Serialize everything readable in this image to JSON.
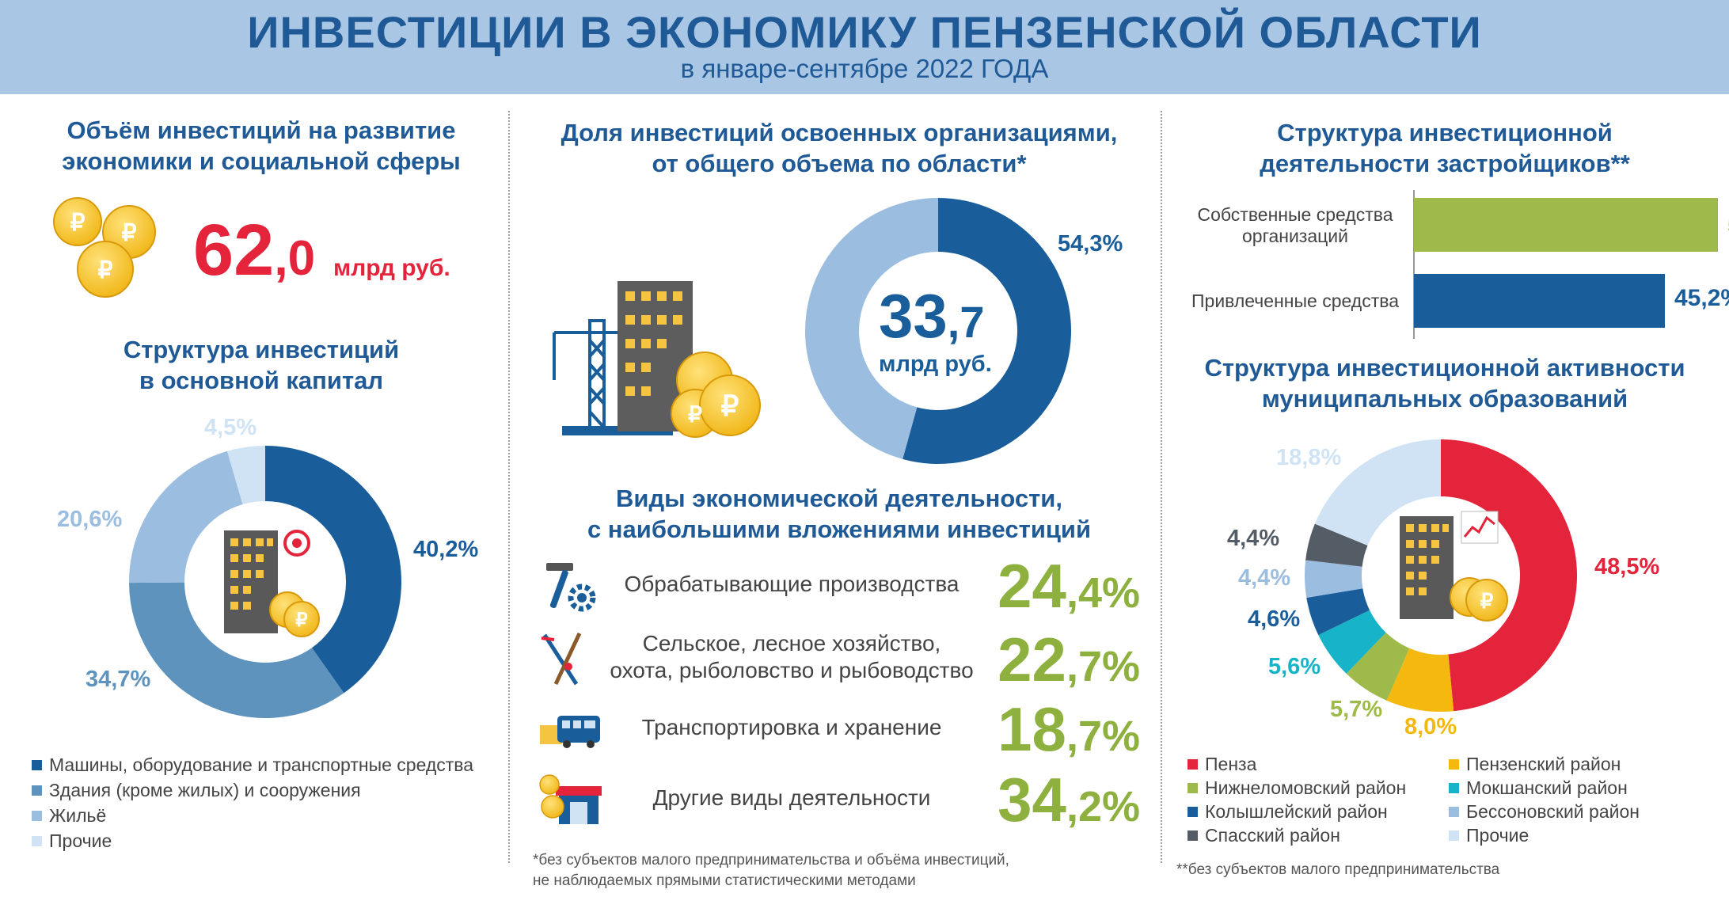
{
  "header": {
    "title": "ИНВЕСТИЦИИ В ЭКОНОМИКУ ПЕНЗЕНСКОЙ ОБЛАСТИ",
    "subtitle": "в январе-сентябре 2022 ГОДА"
  },
  "volume": {
    "title_line1": "Объём инвестиций на развитие",
    "title_line2": "экономики и социальной сферы",
    "value_int": "62",
    "value_dec": ",0",
    "unit": "млрд руб."
  },
  "share": {
    "title_line1": "Доля инвестиций освоенных организациями,",
    "title_line2": "от общего объема по области*",
    "center_int": "33",
    "center_dec": ",7",
    "center_unit": "млрд руб.",
    "percent_label": "54,3%"
  },
  "developers": {
    "title_line1": "Структура  инвестиционной",
    "title_line2": "деятельности  застройщиков**"
  },
  "fixed_capital": {
    "title_line1": "Структура  инвестиций",
    "title_line2": "в основной капитал",
    "labels": [
      "40,2%",
      "34,7%",
      "20,6%",
      "4,5%"
    ],
    "legend": [
      "Машины, оборудование и транспортные средства",
      "Здания (кроме жилых) и сооружения",
      "Жильё",
      "Прочие"
    ]
  },
  "activities": {
    "title_line1": "Виды экономической деятельности,",
    "title_line2": "с наибольшими вложениями инвестиций",
    "items": [
      {
        "name_line1": "Обрабатывающие  производства",
        "name_line2": "",
        "int": "24",
        "dec": ",4%",
        "icon": "hammer-gear-icon"
      },
      {
        "name_line1": "Сельское, лесное хозяйство,",
        "name_line2": "охота, рыболовство и рыбоводство",
        "int": "22",
        "dec": ",7%",
        "icon": "rods-icon"
      },
      {
        "name_line1": "Транспортировка и хранение",
        "name_line2": "",
        "int": "18",
        "dec": ",7%",
        "icon": "truck-bus-icon"
      },
      {
        "name_line1": "Другие виды деятельности",
        "name_line2": "",
        "int": "34",
        "dec": ",2%",
        "icon": "shop-coins-icon"
      }
    ]
  },
  "municipal": {
    "title_line1": "Структура  инвестиционной активности",
    "title_line2": "муниципальных образований",
    "labels": [
      "48,5%",
      "8,0%",
      "5,7%",
      "5,6%",
      "4,6%",
      "4,4%",
      "4,4%",
      "18,8%"
    ],
    "legend": [
      "Пенза",
      "Пензенский район",
      "Нижнеломовский район",
      "Мокшанский район",
      "Колышлейский район",
      "Бессоновский район",
      "Спасский район",
      "Прочие"
    ]
  },
  "footnotes": {
    "note1_line1": "*без субъектов малого предпринимательства  и объёма инвестиций,",
    "note1_line2": "не наблюдаемых прямыми  статистическими методами",
    "note2": "**без субъектов малого  предпринимательства"
  },
  "colors": {
    "title_blue": "#1f5a96",
    "accent_red": "#e3243b",
    "accent_green": "#8db03f"
  },
  "chart_data": [
    {
      "type": "pie",
      "title": "Доля инвестиций освоенных организациями, от общего объема по области*",
      "categories": [
        "",
        ""
      ],
      "values": [
        54.3,
        45.7
      ],
      "colors": [
        "#1a5d9b",
        "#9bbde0"
      ]
    },
    {
      "type": "pie",
      "title": "Структура  инвестиций в основной капитал",
      "categories": [
        "Машины, оборудование и транспортные средства",
        "Здания (кроме жилых) и сооружения",
        "Жильё",
        "Прочие"
      ],
      "values": [
        40.2,
        34.7,
        20.6,
        4.5
      ],
      "colors": [
        "#1a5d9b",
        "#5e93bd",
        "#9bbde0",
        "#cfe3f5"
      ]
    },
    {
      "type": "bar",
      "title": "Структура  инвестиционной деятельности  застройщиков**",
      "categories": [
        "Собственные средства организаций",
        "Привлеченные средства"
      ],
      "values": [
        54.8,
        45.2
      ],
      "colors": [
        "#9dba4a",
        "#1a5d9b"
      ],
      "orientation": "horizontal"
    },
    {
      "type": "pie",
      "title": "Структура  инвестиционной активности муниципальных образований",
      "categories": [
        "Пенза",
        "Пензенский район",
        "Нижнеломовский район",
        "Мокшанский район",
        "Колышлейский район",
        "Бессоновский район",
        "Спасский район",
        "Прочие"
      ],
      "values": [
        48.5,
        8.0,
        5.7,
        5.6,
        4.6,
        4.4,
        4.4,
        18.8
      ],
      "colors": [
        "#e3243b",
        "#f5b80f",
        "#9dba4a",
        "#17b3c9",
        "#1a5d9b",
        "#9bbde0",
        "#545c66",
        "#cfe3f5"
      ]
    },
    {
      "type": "table",
      "title": "Виды экономической деятельности, с наибольшими вложениями инвестиций",
      "categories": [
        "Обрабатывающие  производства",
        "Сельское, лесное хозяйство, охота, рыболовство и рыбоводство",
        "Транспортировка и хранение",
        "Другие виды деятельности"
      ],
      "values": [
        24.4,
        22.7,
        18.7,
        34.2
      ]
    }
  ]
}
